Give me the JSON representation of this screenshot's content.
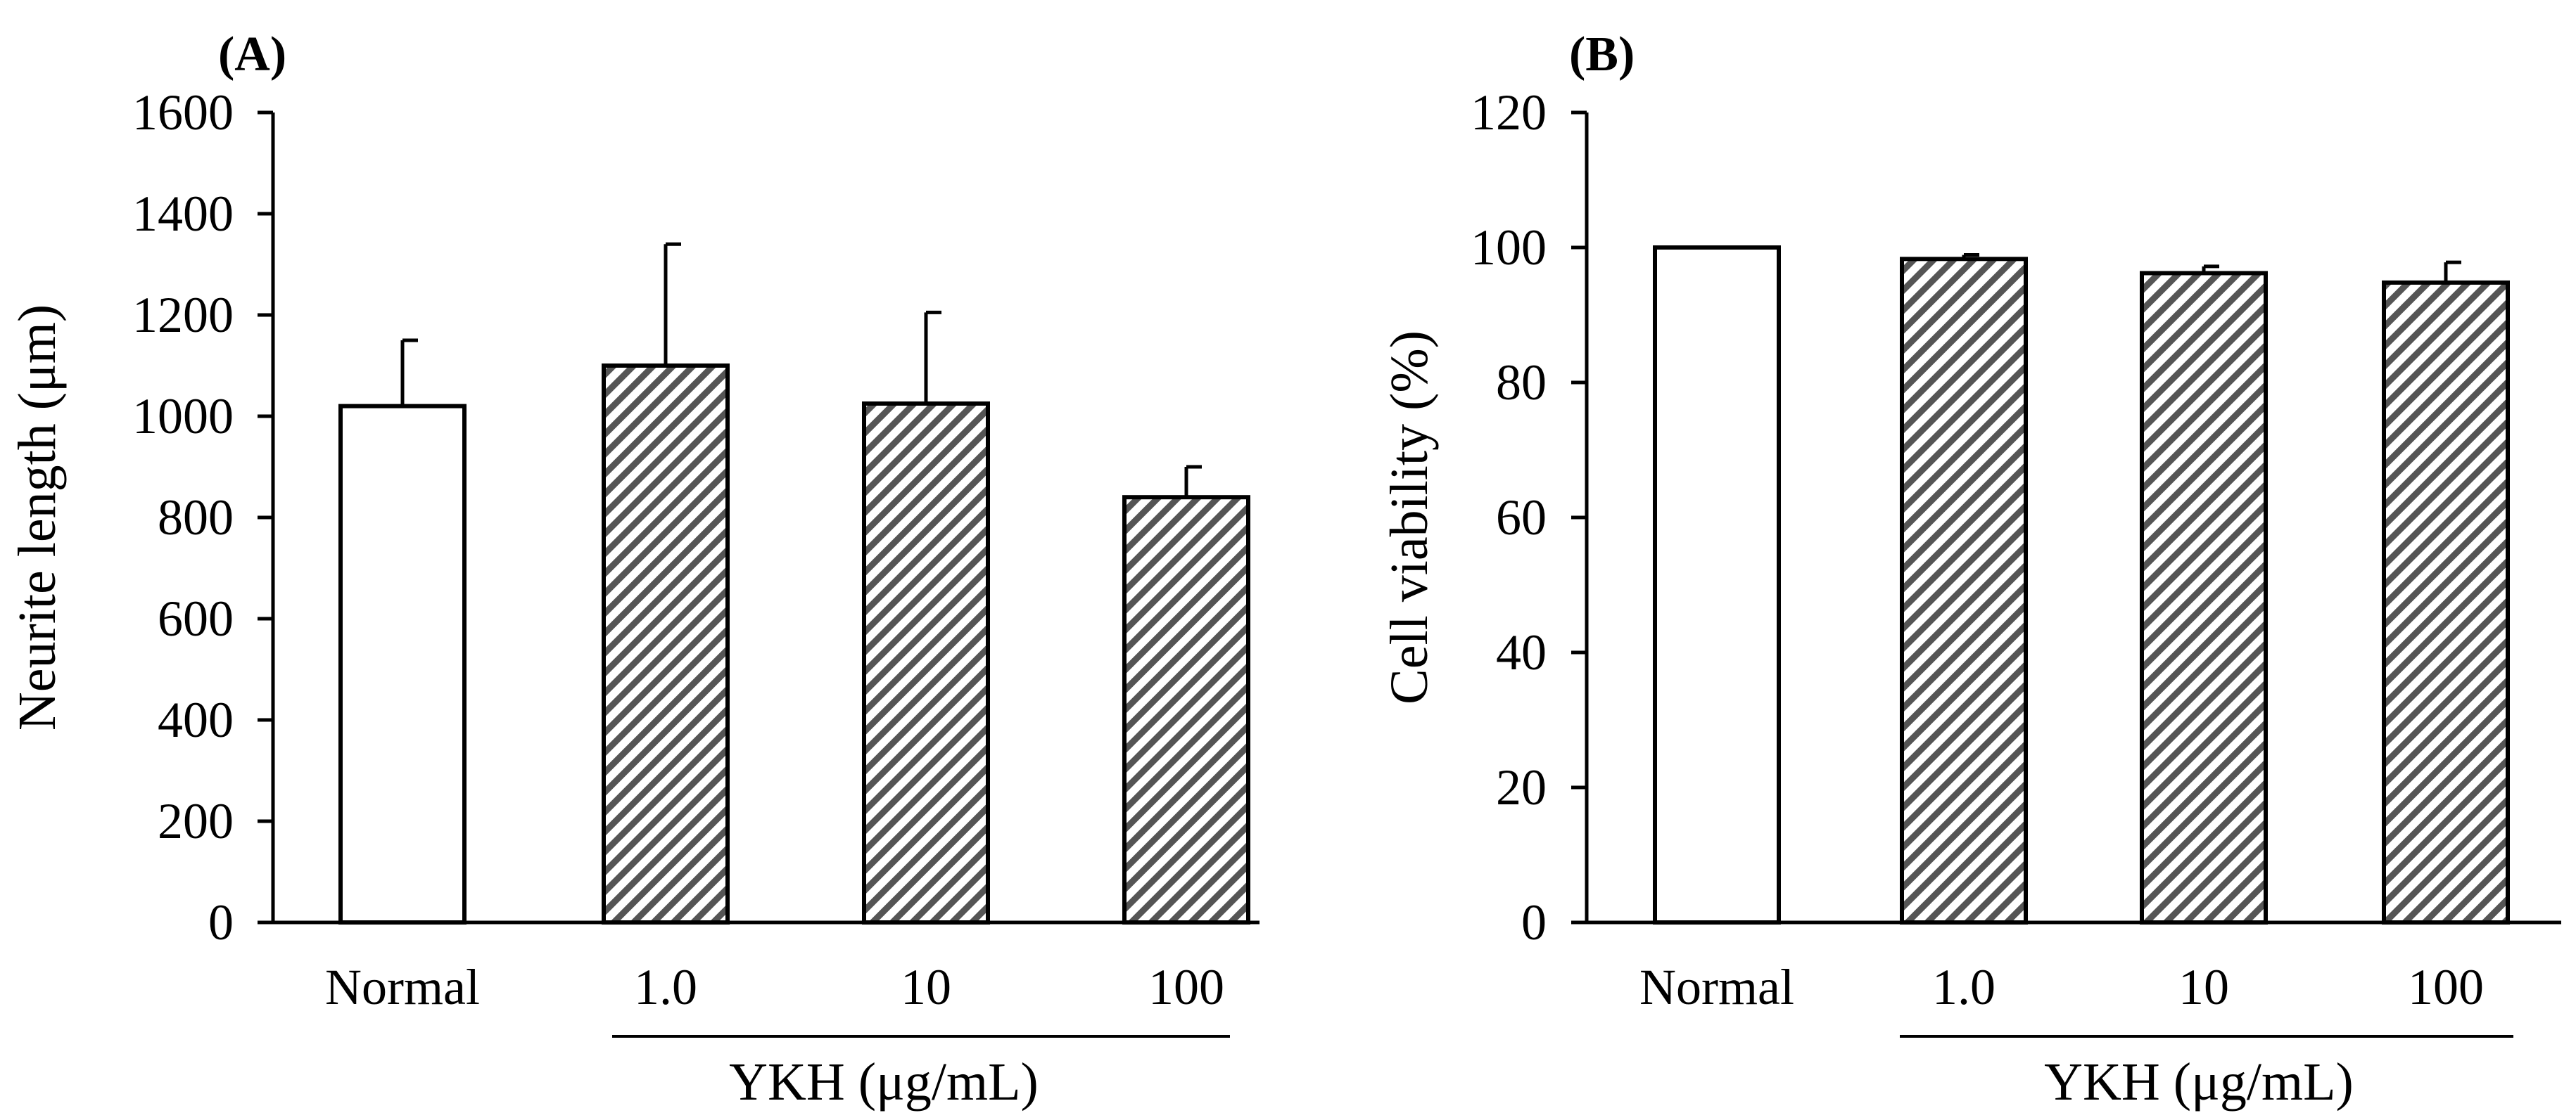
{
  "figure": {
    "palette": {
      "hatch_color": "#555555",
      "bar_stroke": "#000000",
      "normal_fill": "#ffffff"
    }
  },
  "chart_data": [
    {
      "panel": "(A)",
      "type": "bar",
      "categories": [
        "Normal",
        "1.0",
        "10",
        "100"
      ],
      "values": [
        1020,
        1100,
        1025,
        840
      ],
      "errors": [
        130,
        240,
        180,
        60
      ],
      "patterns": [
        "open",
        "hatched",
        "hatched",
        "hatched"
      ],
      "ylabel": "Neurite length (μm)",
      "ylim": [
        0,
        1600
      ],
      "yticks": [
        0,
        200,
        400,
        600,
        800,
        1000,
        1200,
        1400,
        1600
      ],
      "group_label": "YKH (μg/mL)",
      "group_span": [
        1,
        3
      ],
      "grid": false
    },
    {
      "panel": "(B)",
      "type": "bar",
      "categories": [
        "Normal",
        "1.0",
        "10",
        "100"
      ],
      "values": [
        100,
        98.3,
        96.2,
        94.8
      ],
      "errors": [
        0,
        0.6,
        1.0,
        3.0
      ],
      "patterns": [
        "open",
        "hatched",
        "hatched",
        "hatched"
      ],
      "ylabel": "Cell viability (%)",
      "ylim": [
        0,
        120
      ],
      "yticks": [
        0,
        20,
        40,
        60,
        80,
        100,
        120
      ],
      "group_label": "YKH (μg/mL)",
      "group_span": [
        1,
        3
      ],
      "grid": false
    }
  ]
}
